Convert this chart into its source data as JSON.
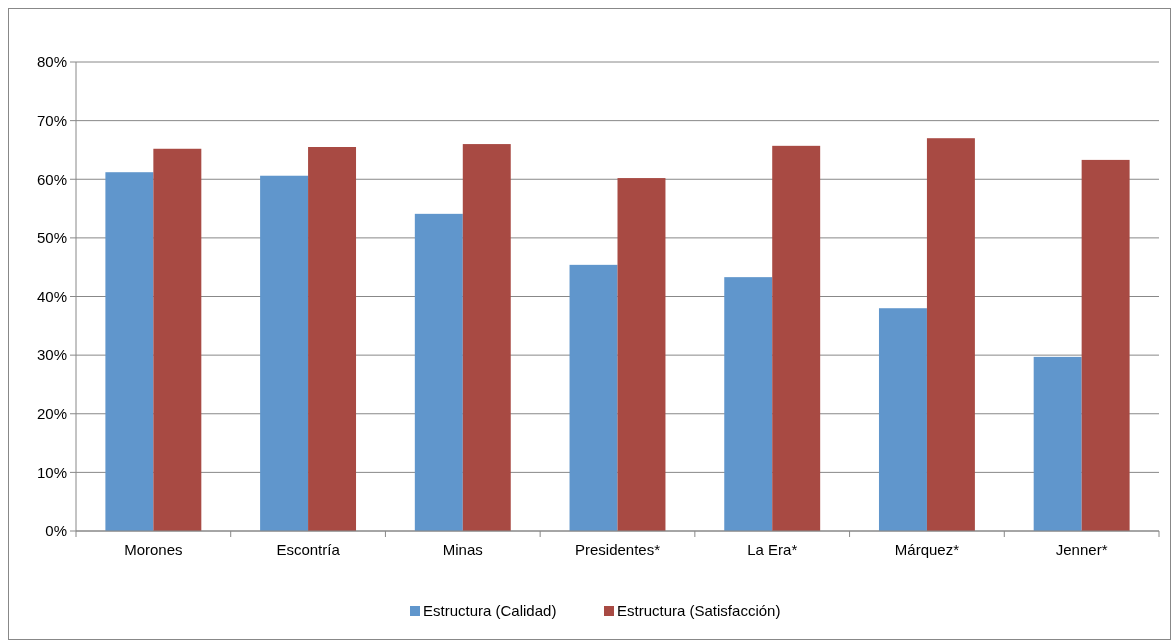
{
  "chart_data": {
    "type": "bar",
    "categories": [
      "Morones",
      "Escontría",
      "Minas",
      "Presidentes*",
      "La Era*",
      "Márquez*",
      "Jenner*"
    ],
    "series": [
      {
        "name": "Estructura (Calidad)",
        "color": "#6096cc",
        "values": [
          61.2,
          60.6,
          54.1,
          45.4,
          43.3,
          38.0,
          29.7
        ]
      },
      {
        "name": "Estructura (Satisfacción)",
        "color": "#a84a43",
        "values": [
          65.2,
          65.5,
          66.0,
          60.2,
          65.7,
          67.0,
          63.3
        ]
      }
    ],
    "ylim": [
      0,
      80
    ],
    "yticks": [
      {
        "value": 0,
        "label": "0%"
      },
      {
        "value": 10,
        "label": "10%"
      },
      {
        "value": 20,
        "label": "20%"
      },
      {
        "value": 30,
        "label": "30%"
      },
      {
        "value": 40,
        "label": "40%"
      },
      {
        "value": 50,
        "label": "50%"
      },
      {
        "value": 60,
        "label": "60%"
      },
      {
        "value": 70,
        "label": "70%"
      },
      {
        "value": 80,
        "label": "80%"
      }
    ],
    "grid": "y",
    "legend": "bottom"
  }
}
